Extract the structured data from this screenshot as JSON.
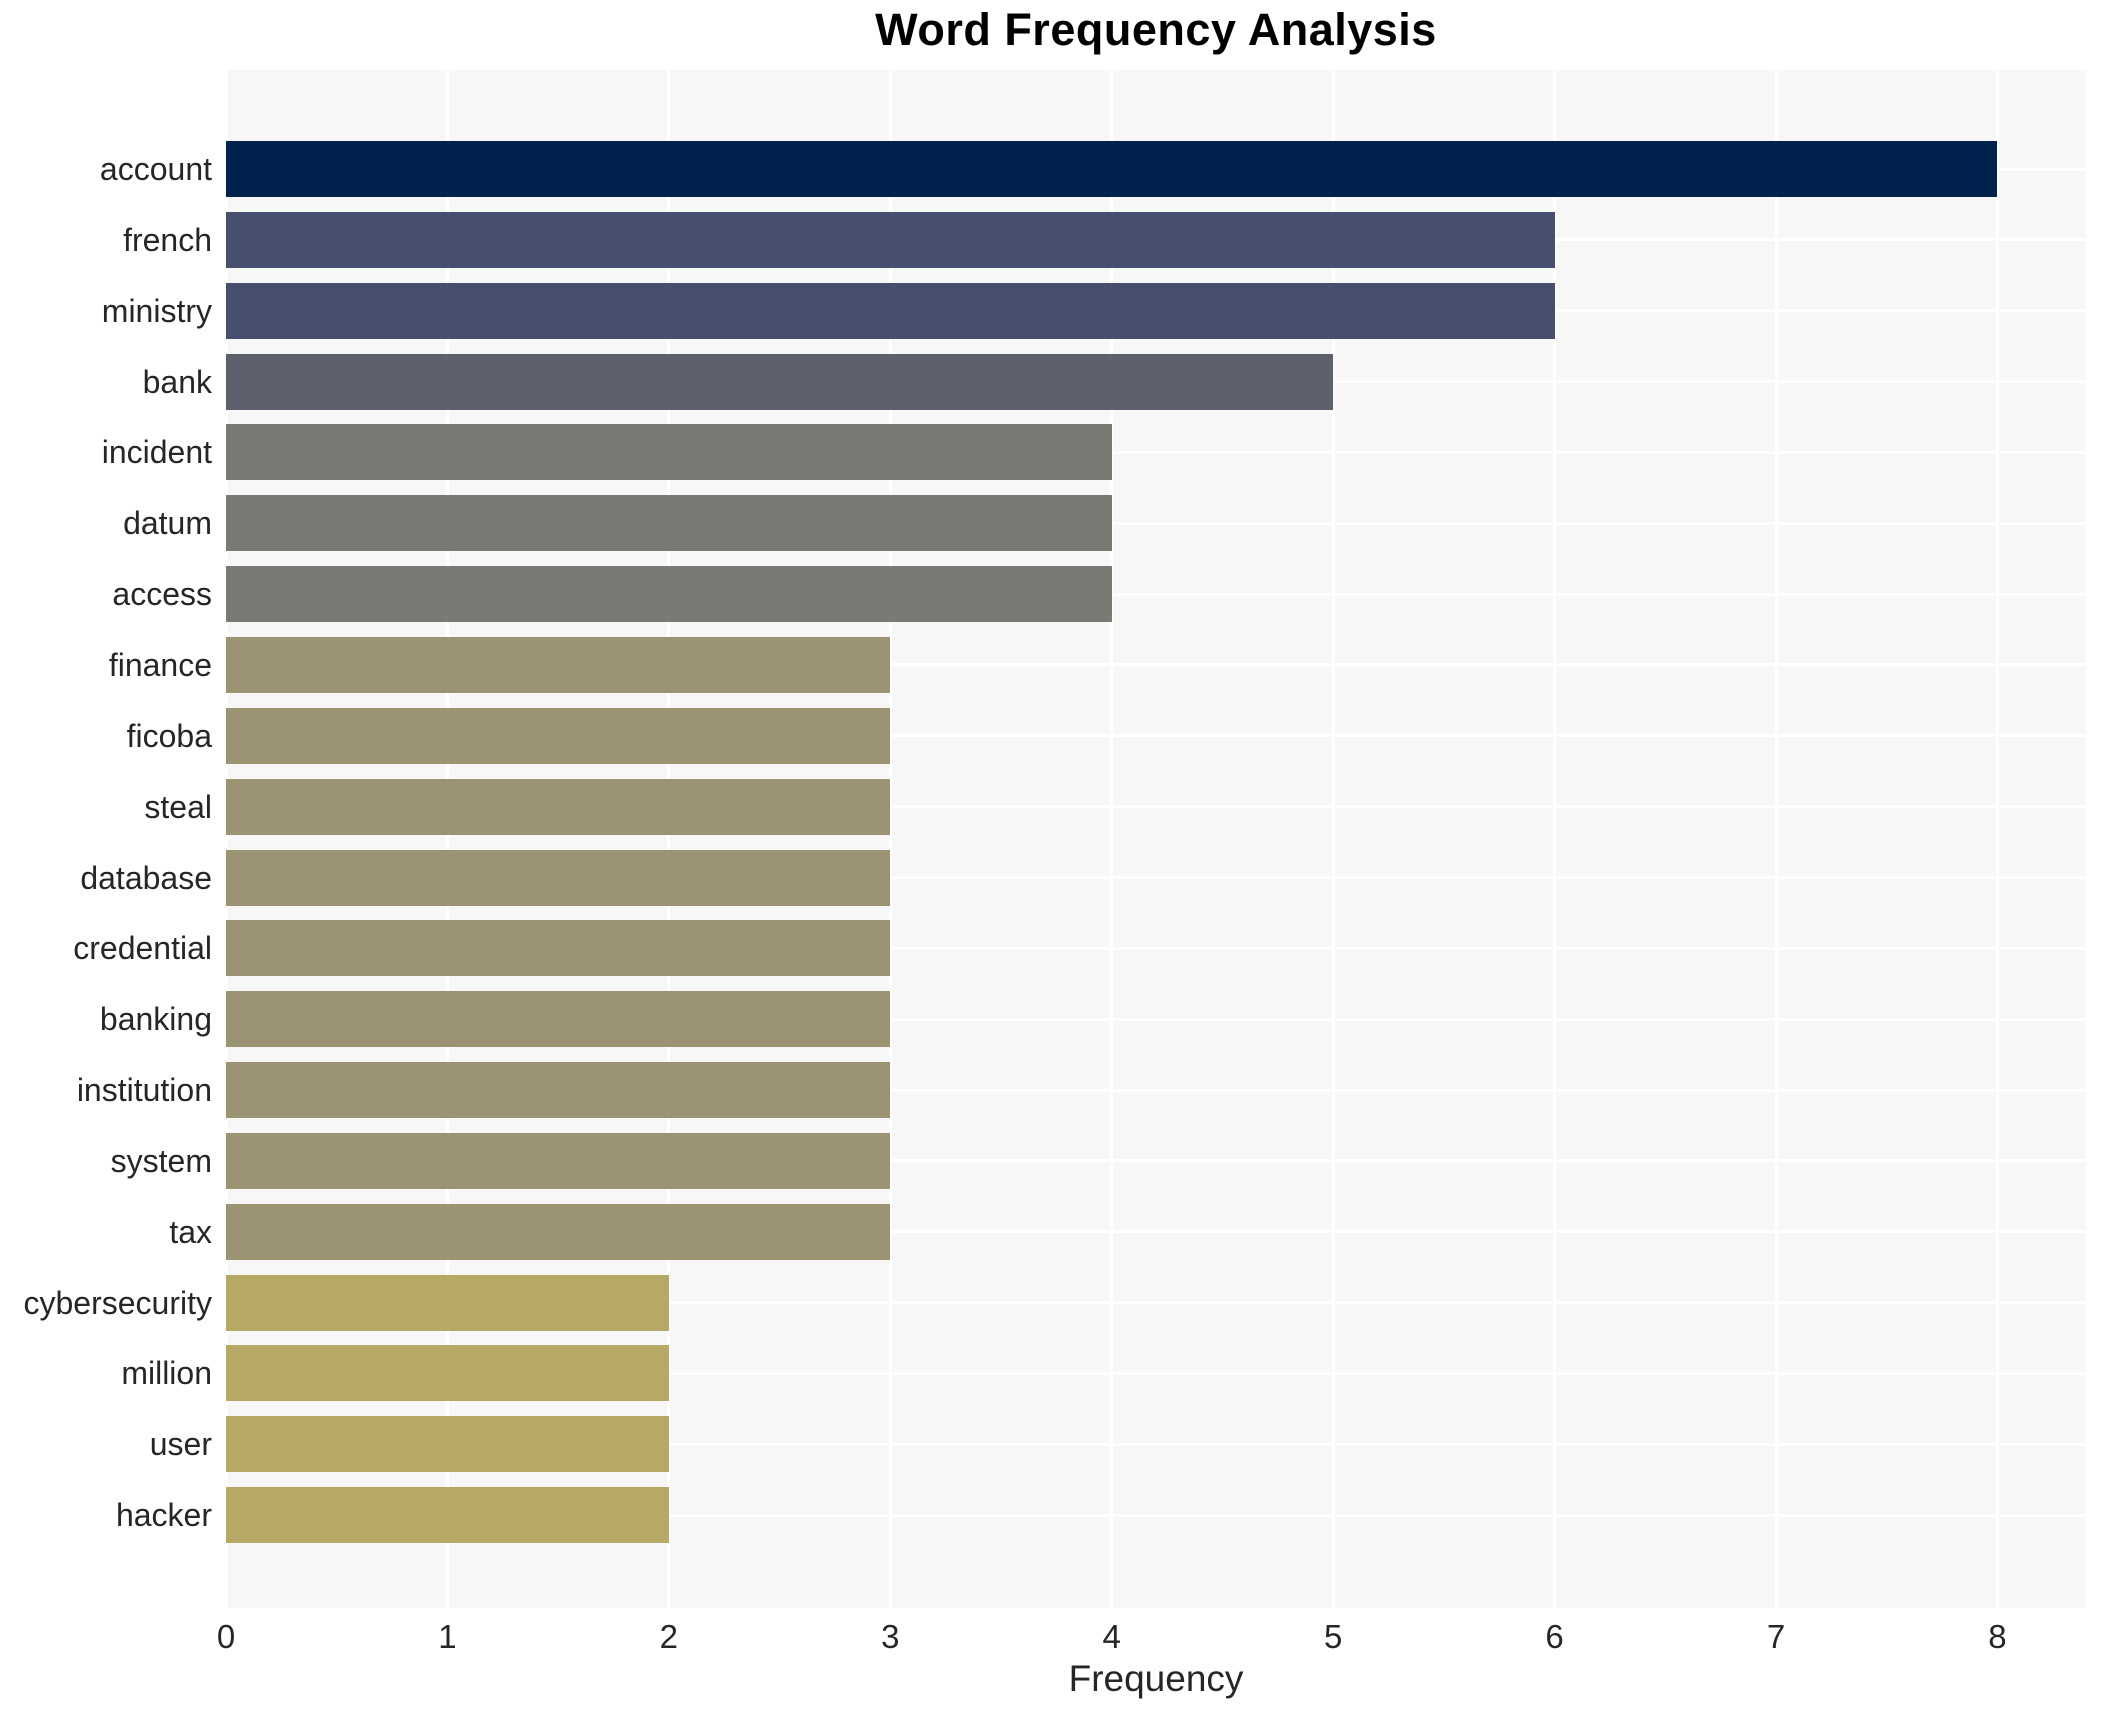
{
  "title": "Word Frequency Analysis",
  "chart_data": {
    "type": "bar",
    "orientation": "horizontal",
    "title": "Word Frequency Analysis",
    "xlabel": "Frequency",
    "ylabel": "",
    "xlim": [
      0,
      8.4
    ],
    "xticks": [
      0,
      1,
      2,
      3,
      4,
      5,
      6,
      7,
      8
    ],
    "grid": true,
    "legend": "none",
    "categories": [
      "account",
      "french",
      "ministry",
      "bank",
      "incident",
      "datum",
      "access",
      "finance",
      "ficoba",
      "steal",
      "database",
      "credential",
      "banking",
      "institution",
      "system",
      "tax",
      "cybersecurity",
      "million",
      "user",
      "hacker"
    ],
    "values": [
      8,
      6,
      6,
      5,
      4,
      4,
      4,
      3,
      3,
      3,
      3,
      3,
      3,
      3,
      3,
      3,
      2,
      2,
      2,
      2
    ],
    "bar_colors": [
      "#02224e",
      "#46506e",
      "#46506e",
      "#5d616e",
      "#7b7974",
      "#7b7974",
      "#7b7974",
      "#9c9373",
      "#9c9373",
      "#9c9373",
      "#9c9373",
      "#9c9373",
      "#9c9373",
      "#9c9373",
      "#9c9373",
      "#9c9373",
      "#b6a965",
      "#b6a965",
      "#b6a965",
      "#b6a965"
    ]
  },
  "colors": {
    "plot_background": "#f7f7f8",
    "gridline": "#ffffff",
    "tick_text": "#262626",
    "title_text": "#000000"
  }
}
